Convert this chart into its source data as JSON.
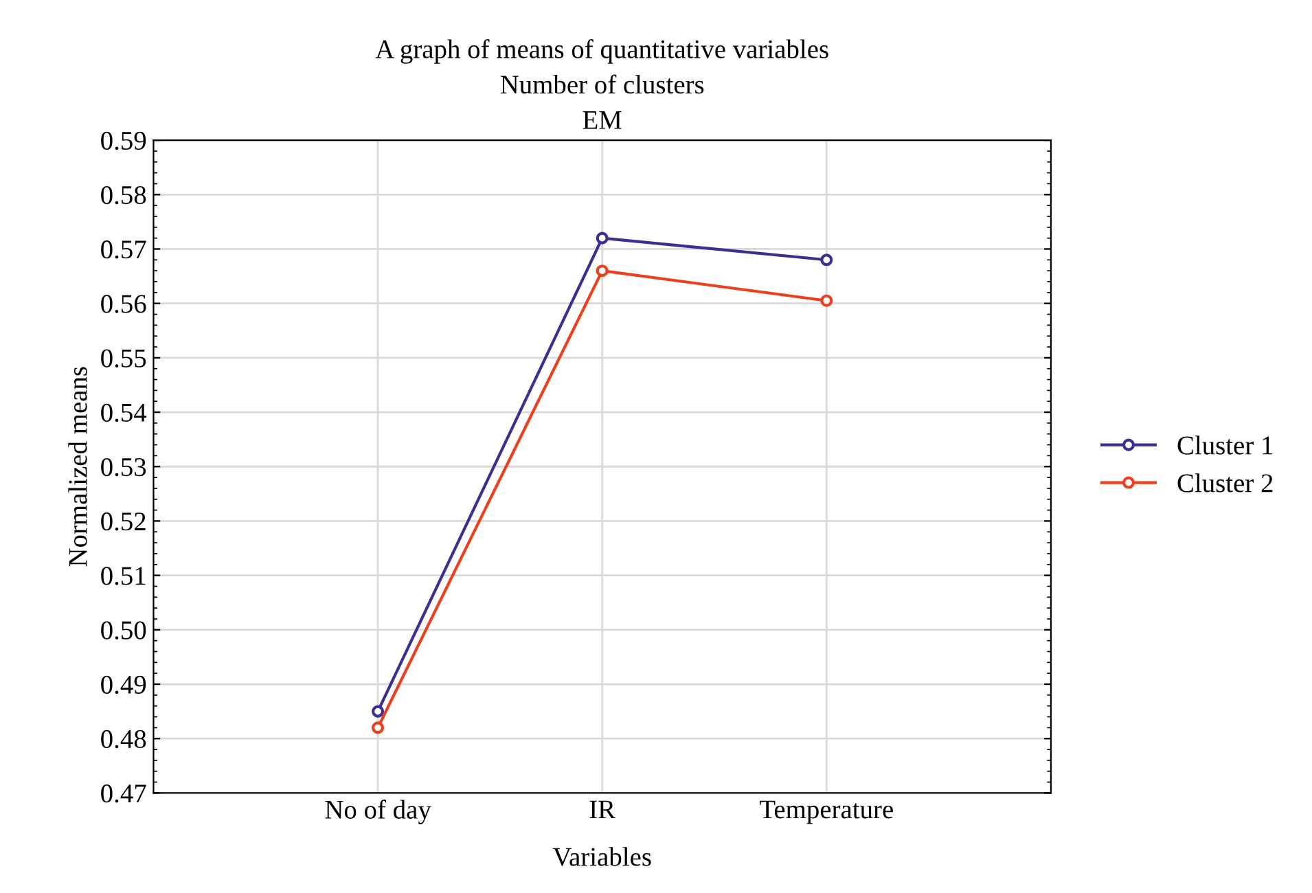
{
  "chart_data": {
    "type": "line",
    "title": "A graph of means of quantitative variables\nNumber of clusters\nEM",
    "xlabel": "Variables",
    "ylabel": "Normalized means",
    "categories": [
      "No of day",
      "IR",
      "Temperature"
    ],
    "series": [
      {
        "name": "Cluster 1",
        "color": "#3b2f92",
        "values": [
          0.485,
          0.572,
          0.568
        ]
      },
      {
        "name": "Cluster 2",
        "color": "#ee3f1c",
        "values": [
          0.482,
          0.566,
          0.5605
        ]
      }
    ],
    "ylim": [
      0.47,
      0.59
    ],
    "yticks": [
      0.47,
      0.48,
      0.49,
      {
        "value": 0.5,
        "label": "0.50"
      },
      0.51,
      0.52,
      0.53,
      0.54,
      0.55,
      0.56,
      0.57,
      0.58,
      0.59
    ],
    "grid": true,
    "legend": "right",
    "marker": "circle",
    "line_style": "solid"
  }
}
